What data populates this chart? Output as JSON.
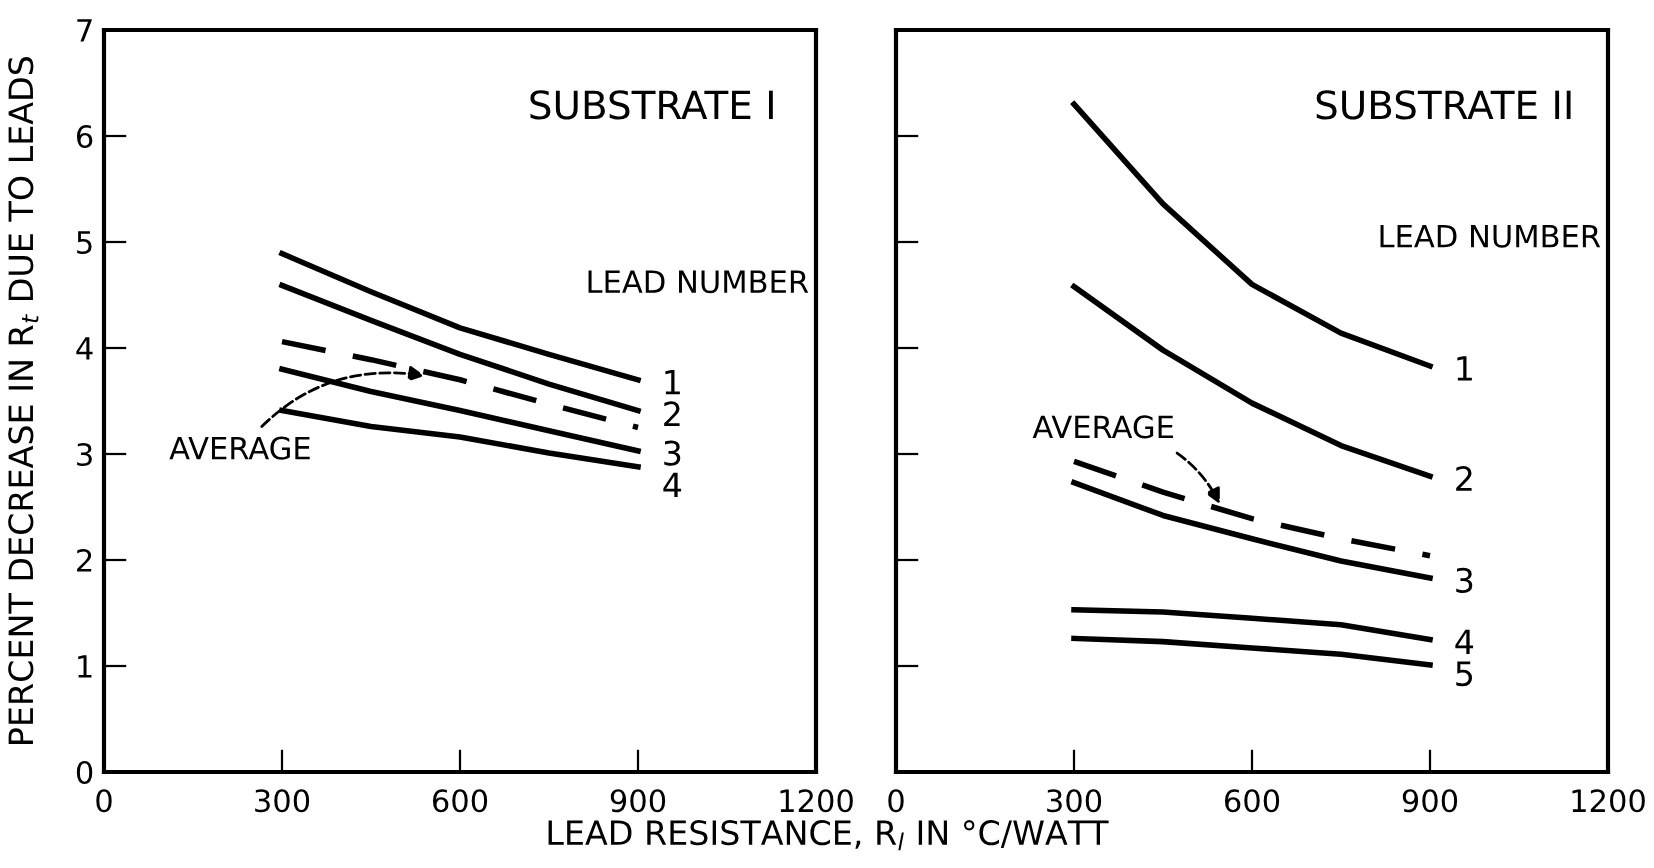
{
  "chart_data": [
    {
      "type": "line",
      "title": "SUBSTRATE I",
      "xlabel": "LEAD RESISTANCE, R$_{l}$ IN °C/WATT",
      "ylabel": "PERCENT DECREASE IN R$_{t}$ DUE TO LEADS",
      "x": [
        300,
        450,
        600,
        750,
        900
      ],
      "xlim": [
        0,
        1200
      ],
      "xticks": [
        0,
        300,
        600,
        900,
        1200
      ],
      "ylim": [
        0,
        7
      ],
      "yticks": [
        0,
        1,
        2,
        3,
        4,
        5,
        6,
        7
      ],
      "grid": false,
      "legend": false,
      "series": [
        {
          "name": "1",
          "color": "#000000",
          "values": [
            4.89,
            4.53,
            4.19,
            3.94,
            3.7
          ]
        },
        {
          "name": "2",
          "color": "#000000",
          "values": [
            4.59,
            4.26,
            3.94,
            3.66,
            3.41
          ]
        },
        {
          "color": "#000000",
          "line_style": "dashed",
          "values": [
            4.06,
            3.89,
            3.7,
            3.47,
            3.25
          ]
        },
        {
          "name": "3",
          "color": "#000000",
          "values": [
            3.8,
            3.59,
            3.41,
            3.22,
            3.03
          ]
        },
        {
          "name": "4",
          "color": "#000000",
          "values": [
            3.41,
            3.26,
            3.16,
            3.01,
            2.88
          ]
        }
      ],
      "annotations": [
        "LEAD NUMBER",
        {
          "text": "AVERAGE",
          "x": 550,
          "y": 3.73
        }
      ]
    },
    {
      "type": "line",
      "title": "SUBSTRATE II",
      "x": [
        300,
        450,
        600,
        750,
        900
      ],
      "xlim": [
        0,
        1200
      ],
      "xticks": [
        0,
        300,
        600,
        900,
        1200
      ],
      "ylim": [
        0,
        7
      ],
      "yticks": [
        {
          "value": 0,
          "label": null
        },
        {
          "value": 1,
          "label": null
        },
        {
          "value": 2,
          "label": null
        },
        {
          "value": 3,
          "label": null
        },
        {
          "value": 4,
          "label": null
        },
        {
          "value": 5,
          "label": null
        },
        {
          "value": 6,
          "label": null
        },
        {
          "value": 7,
          "label": null
        }
      ],
      "tick_labels": "x",
      "grid": false,
      "legend": false,
      "series": [
        {
          "name": "1",
          "color": "#000000",
          "values": [
            6.3,
            5.36,
            4.6,
            4.14,
            3.83
          ]
        },
        {
          "name": "2",
          "color": "#000000",
          "values": [
            4.58,
            3.98,
            3.48,
            3.08,
            2.79
          ]
        },
        {
          "color": "#000000",
          "line_style": "dashed",
          "values": [
            2.93,
            2.64,
            2.39,
            2.2,
            2.04
          ]
        },
        {
          "name": "3",
          "color": "#000000",
          "values": [
            2.73,
            2.42,
            2.2,
            1.99,
            1.83
          ]
        },
        {
          "name": "4",
          "color": "#000000",
          "values": [
            1.53,
            1.51,
            1.45,
            1.39,
            1.25
          ]
        },
        {
          "name": "5",
          "color": "#000000",
          "values": [
            1.26,
            1.23,
            1.17,
            1.11,
            1.01
          ]
        }
      ],
      "annotations": [
        "LEAD NUMBER",
        {
          "text": "AVERAGE",
          "x": 550,
          "y": 2.48
        }
      ]
    }
  ]
}
